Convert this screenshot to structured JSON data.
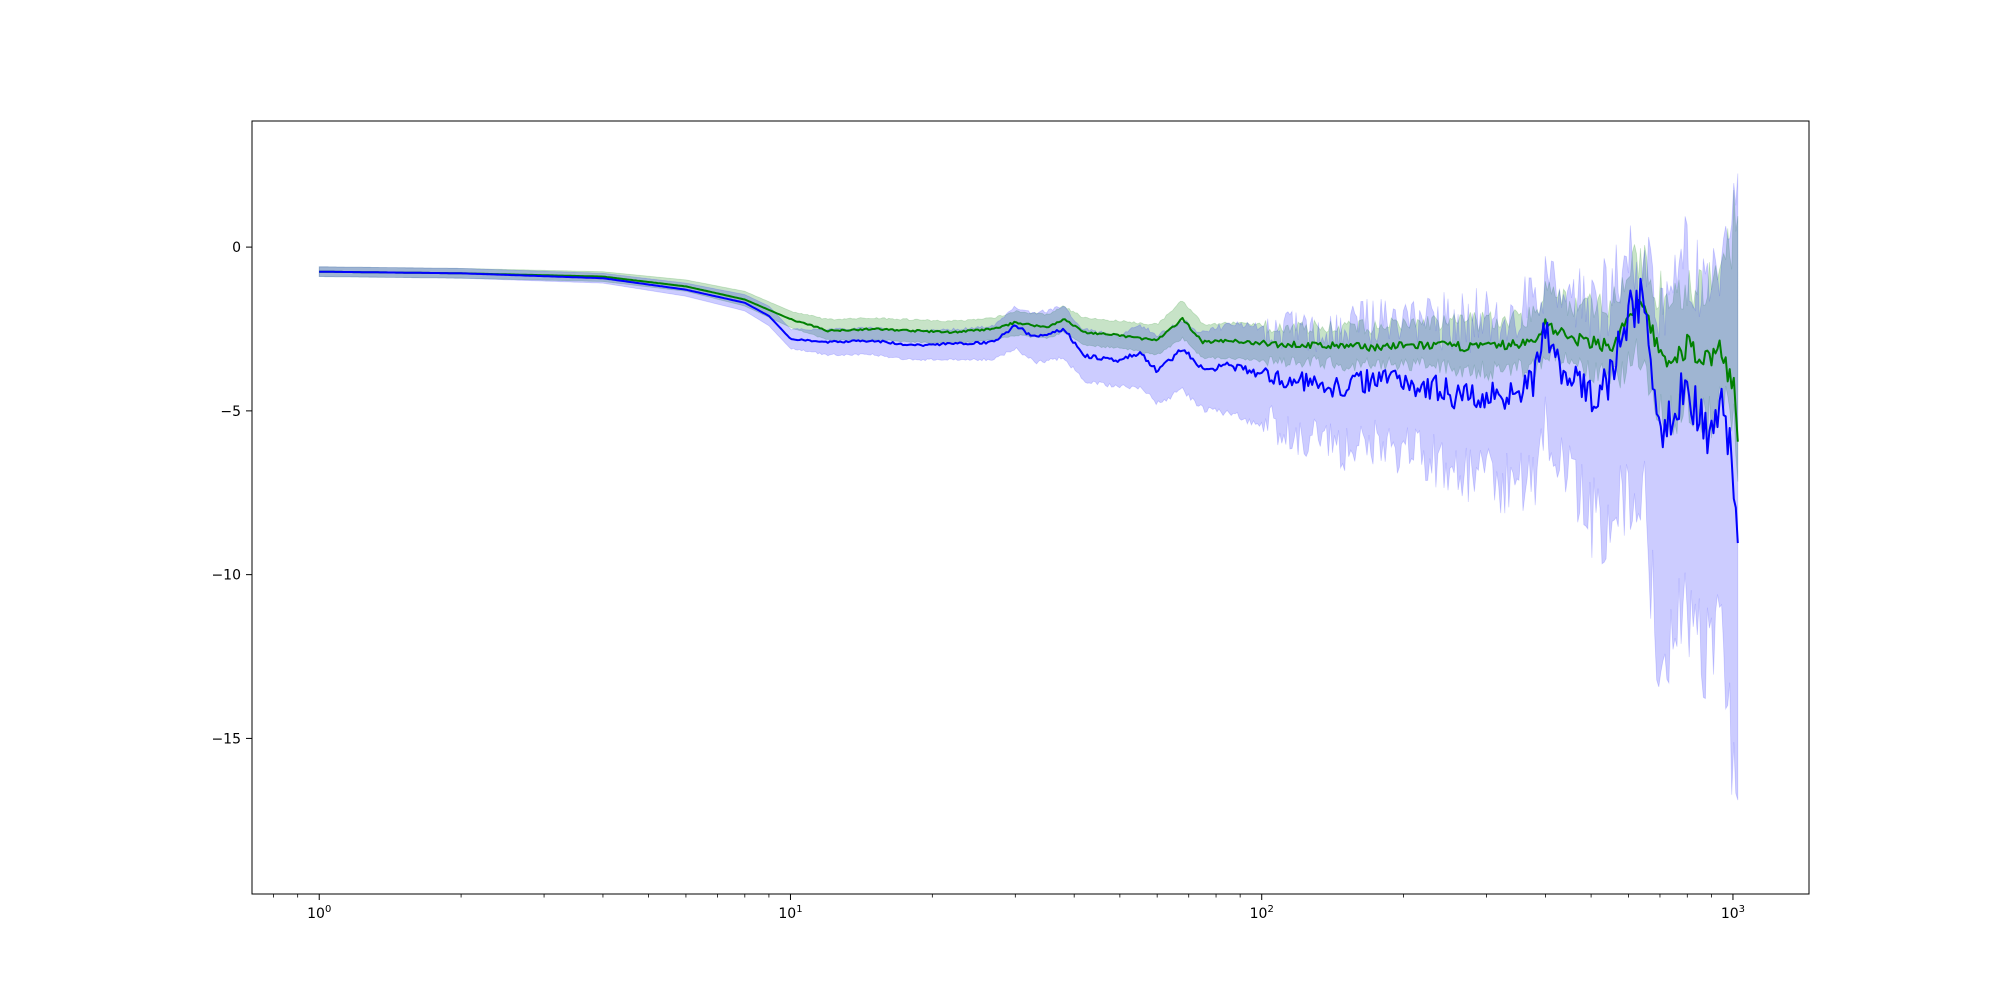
{
  "chart_data": {
    "type": "line",
    "title": "",
    "xlabel": "",
    "ylabel": "",
    "xscale": "log",
    "xlim": [
      0.72,
      1450
    ],
    "ylim": [
      -19.75,
      3.85
    ],
    "grid": false,
    "x_ticks": [
      {
        "value": 1,
        "base": "10",
        "exp": "0"
      },
      {
        "value": 10,
        "base": "10",
        "exp": "1"
      },
      {
        "value": 100,
        "base": "10",
        "exp": "2"
      },
      {
        "value": 1000,
        "base": "10",
        "exp": "3"
      }
    ],
    "y_ticks": [
      {
        "value": 0,
        "label": "0"
      },
      {
        "value": -5,
        "label": "−5"
      },
      {
        "value": -10,
        "label": "−10"
      },
      {
        "value": -15,
        "label": "−15"
      }
    ],
    "series": [
      {
        "color": "#008000",
        "band_color": "#008000",
        "band_opacity": 0.22,
        "x": [
          1,
          2,
          4,
          6,
          8,
          10,
          12,
          15,
          18,
          22,
          27,
          30,
          35,
          38,
          42,
          50,
          60,
          68,
          75,
          85,
          100,
          130,
          170,
          220,
          300,
          380,
          400,
          450,
          500,
          560,
          620,
          650,
          700,
          750,
          800,
          870,
          950,
          1000,
          1024
        ],
        "mean": [
          -0.75,
          -0.8,
          -0.9,
          -1.2,
          -1.6,
          -2.2,
          -2.55,
          -2.5,
          -2.55,
          -2.6,
          -2.5,
          -2.3,
          -2.45,
          -2.2,
          -2.6,
          -2.7,
          -2.85,
          -2.2,
          -2.9,
          -2.85,
          -2.95,
          -3.0,
          -3.05,
          -3.0,
          -3.05,
          -2.9,
          -2.3,
          -2.8,
          -2.9,
          -3.0,
          -1.8,
          -2.0,
          -3.2,
          -3.6,
          -3.0,
          -3.4,
          -3.1,
          -4.2,
          -5.4
        ],
        "lower": [
          -0.9,
          -0.95,
          -1.05,
          -1.35,
          -1.8,
          -2.45,
          -2.85,
          -2.85,
          -2.9,
          -2.95,
          -2.85,
          -2.7,
          -2.8,
          -2.6,
          -3.0,
          -3.1,
          -3.3,
          -2.8,
          -3.4,
          -3.4,
          -3.5,
          -3.6,
          -3.7,
          -3.7,
          -3.9,
          -3.8,
          -3.4,
          -3.8,
          -4.0,
          -4.3,
          -3.5,
          -3.9,
          -5.2,
          -5.5,
          -5.0,
          -5.5,
          -5.2,
          -6.0,
          -8.2
        ],
        "upper": [
          -0.6,
          -0.65,
          -0.75,
          -1.0,
          -1.35,
          -1.95,
          -2.2,
          -2.15,
          -2.2,
          -2.25,
          -2.15,
          -1.95,
          -2.05,
          -1.8,
          -2.15,
          -2.25,
          -2.35,
          -1.6,
          -2.35,
          -2.3,
          -2.35,
          -2.35,
          -2.35,
          -2.2,
          -2.15,
          -1.95,
          -1.1,
          -1.6,
          -1.6,
          -1.4,
          -0.2,
          -0.3,
          -1.1,
          -1.4,
          -0.8,
          -1.0,
          -0.6,
          0.8,
          2.6
        ]
      },
      {
        "color": "#0000ff",
        "band_color": "#0000ff",
        "band_opacity": 0.2,
        "x": [
          1,
          2,
          4,
          6,
          8,
          9,
          10,
          12,
          15,
          18,
          22,
          27,
          30,
          33,
          38,
          42,
          50,
          55,
          60,
          68,
          75,
          85,
          100,
          120,
          150,
          180,
          220,
          260,
          300,
          350,
          380,
          400,
          430,
          470,
          520,
          560,
          600,
          650,
          700,
          750,
          800,
          850,
          900,
          950,
          1000,
          1024
        ],
        "mean": [
          -0.75,
          -0.8,
          -0.95,
          -1.3,
          -1.7,
          -2.1,
          -2.8,
          -2.9,
          -2.85,
          -3.0,
          -2.95,
          -2.9,
          -2.4,
          -2.75,
          -2.5,
          -3.3,
          -3.5,
          -3.2,
          -3.8,
          -3.1,
          -3.75,
          -3.6,
          -3.9,
          -4.1,
          -4.3,
          -3.9,
          -4.2,
          -4.5,
          -4.6,
          -4.3,
          -4.0,
          -2.4,
          -3.8,
          -4.3,
          -4.6,
          -3.6,
          -2.0,
          -1.6,
          -5.5,
          -4.8,
          -4.3,
          -5.2,
          -5.8,
          -4.5,
          -6.8,
          -9.0
        ],
        "lower": [
          -0.9,
          -0.95,
          -1.1,
          -1.5,
          -1.95,
          -2.4,
          -3.1,
          -3.3,
          -3.3,
          -3.45,
          -3.45,
          -3.45,
          -3.1,
          -3.55,
          -3.4,
          -4.1,
          -4.3,
          -4.3,
          -4.8,
          -4.4,
          -5.0,
          -5.1,
          -5.5,
          -6.0,
          -6.5,
          -6.2,
          -6.8,
          -7.3,
          -7.6,
          -7.5,
          -7.3,
          -5.8,
          -7.2,
          -8.0,
          -9.2,
          -8.5,
          -7.8,
          -8.5,
          -13.6,
          -12.5,
          -11.5,
          -12.8,
          -13.0,
          -12.0,
          -16.5,
          -18.8
        ],
        "upper": [
          -0.6,
          -0.65,
          -0.8,
          -1.1,
          -1.45,
          -1.8,
          -2.5,
          -2.5,
          -2.45,
          -2.55,
          -2.5,
          -2.4,
          -1.8,
          -2.0,
          -1.8,
          -2.5,
          -2.7,
          -2.3,
          -2.7,
          -2.2,
          -2.6,
          -2.3,
          -2.4,
          -2.3,
          -2.3,
          -1.8,
          -1.9,
          -1.9,
          -1.8,
          -1.5,
          -1.4,
          -0.7,
          -1.3,
          -1.3,
          -1.0,
          -0.6,
          -0.2,
          0.2,
          -0.8,
          -0.5,
          0.2,
          -0.6,
          -0.9,
          -0.2,
          1.0,
          2.3
        ]
      }
    ]
  }
}
